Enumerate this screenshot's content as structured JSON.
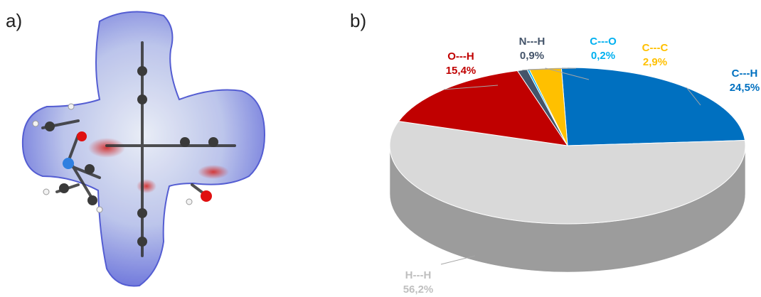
{
  "panels": {
    "a_label": "a)",
    "b_label": "b)"
  },
  "chart_data": {
    "type": "pie",
    "title": "",
    "categories": [
      "C---H",
      "H---H",
      "O---H",
      "N---H",
      "C---O",
      "C---C"
    ],
    "values": [
      24.5,
      56.2,
      15.4,
      0.9,
      0.2,
      2.9
    ],
    "value_labels": [
      "24,5%",
      "56,2%",
      "15,4%",
      "0,9%",
      "0,2%",
      "2,9%"
    ],
    "colors": [
      "#0070C0",
      "#D9D9D9",
      "#C00000",
      "#44546A",
      "#00B0F0",
      "#FFC000"
    ],
    "label_colors": [
      "#0070C0",
      "#BFBFBF",
      "#C00000",
      "#44546A",
      "#00B0F0",
      "#FFC000"
    ],
    "style": "3d-pie",
    "legend": "none"
  }
}
